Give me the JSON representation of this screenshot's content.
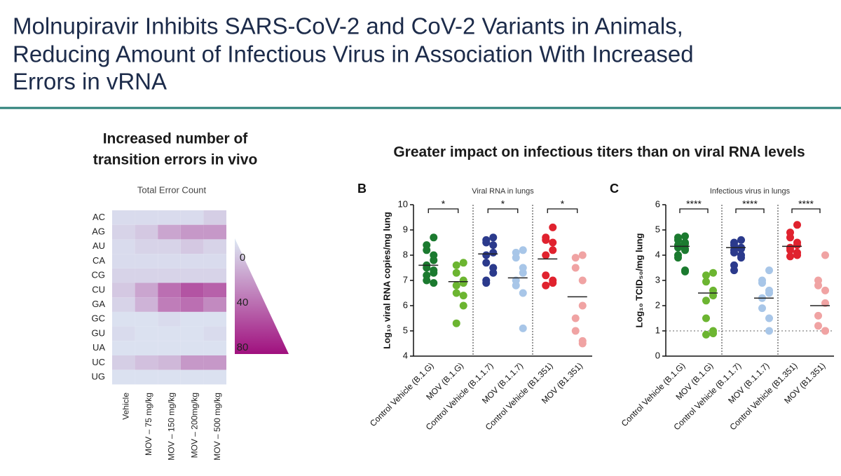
{
  "title": [
    "Molnupiravir Inhibits SARS-CoV-2 and CoV-2 Variants in Animals,",
    "Reducing Amount of Infectious Virus in Association With Increased",
    "Errors in vRNA"
  ],
  "subtitle": "Greater impact on infectious titers than on viral RNA levels",
  "chart_data": [
    {
      "type": "heatmap",
      "title": [
        "Increased number of",
        "transition errors in vivo"
      ],
      "subtitle": "Total Error Count",
      "rows": [
        "AC",
        "AG",
        "AU",
        "CA",
        "CG",
        "CU",
        "GA",
        "GC",
        "GU",
        "UA",
        "UC",
        "UG"
      ],
      "columns": [
        "Vehicle",
        "MOV – 75 mg/kg",
        "MOV – 150 mg/kg",
        "MOV – 200mg/kg",
        "MOV – 500 mg/kg"
      ],
      "values": [
        [
          5,
          5,
          5,
          5,
          10
        ],
        [
          8,
          12,
          25,
          30,
          30
        ],
        [
          5,
          8,
          8,
          12,
          8
        ],
        [
          5,
          5,
          5,
          5,
          5
        ],
        [
          8,
          8,
          8,
          8,
          8
        ],
        [
          12,
          25,
          45,
          55,
          50
        ],
        [
          8,
          20,
          40,
          45,
          35
        ],
        [
          3,
          3,
          5,
          3,
          3
        ],
        [
          5,
          3,
          3,
          3,
          5
        ],
        [
          3,
          3,
          3,
          3,
          3
        ],
        [
          10,
          15,
          18,
          30,
          30
        ],
        [
          3,
          3,
          3,
          3,
          3
        ]
      ],
      "colorscale": [
        "#dde9f4",
        "#a0107e"
      ],
      "zlim": [
        0,
        80
      ],
      "zticks": [
        0,
        40,
        80
      ]
    },
    {
      "type": "dot",
      "panel": "B",
      "title": "Viral RNA in lungs",
      "ylabel": "Log₁₀ viral RNA copies/mg lung",
      "ylim": [
        4,
        10
      ],
      "yticks": [
        4,
        5,
        6,
        7,
        8,
        9,
        10
      ],
      "significance": [
        "*",
        "*",
        "*"
      ],
      "series": [
        {
          "name": "Control Vehicle (B.1.G)",
          "color": "#1b7a2f",
          "mean": 7.6,
          "values": [
            8.7,
            8.4,
            8.2,
            8.0,
            7.8,
            7.6,
            7.5,
            7.4,
            7.3,
            7.2,
            7.0,
            6.9
          ]
        },
        {
          "name": "MOV (B.1.G)",
          "color": "#6cb531",
          "mean": 6.95,
          "values": [
            7.7,
            7.6,
            7.3,
            7.0,
            6.9,
            6.8,
            6.5,
            6.4,
            6.0,
            5.3
          ]
        },
        {
          "name": "Control Vehicle (B.1.1.7)",
          "color": "#2b3a8c",
          "mean": 8.05,
          "values": [
            8.7,
            8.6,
            8.5,
            8.4,
            8.1,
            8.0,
            7.7,
            7.5,
            7.3,
            7.0,
            6.9
          ]
        },
        {
          "name": "MOV (B.1.1.7)",
          "color": "#a8c6e8",
          "mean": 7.1,
          "values": [
            8.2,
            8.1,
            7.9,
            7.5,
            7.3,
            7.0,
            6.8,
            6.5,
            5.1
          ]
        },
        {
          "name": "Control Vehicle (B1.351)",
          "color": "#e0222e",
          "mean": 7.85,
          "values": [
            9.1,
            8.7,
            8.6,
            8.5,
            8.2,
            8.0,
            7.2,
            7.0,
            6.9,
            6.8
          ]
        },
        {
          "name": "MOV (B1.351)",
          "color": "#f0a3a3",
          "mean": 6.35,
          "values": [
            8.0,
            7.9,
            7.5,
            7.0,
            6.0,
            5.5,
            5.0,
            4.6,
            4.5
          ]
        }
      ]
    },
    {
      "type": "dot",
      "panel": "C",
      "title": "Infectious virus in lungs",
      "ylabel": "Log₁₀ TCID₅₀/mg lung",
      "ylim": [
        0,
        6
      ],
      "yticks": [
        0,
        1,
        2,
        3,
        4,
        5,
        6
      ],
      "hline": 1,
      "significance": [
        "****",
        "****",
        "****"
      ],
      "series": [
        {
          "name": "Control Vehicle (B.1.G)",
          "color": "#1b7a2f",
          "mean": 4.35,
          "values": [
            4.75,
            4.7,
            4.6,
            4.5,
            4.45,
            4.4,
            4.3,
            4.25,
            4.2,
            4.0,
            3.9,
            3.4,
            3.35
          ]
        },
        {
          "name": "MOV (B.1.G)",
          "color": "#6cb531",
          "mean": 2.5,
          "values": [
            3.3,
            3.2,
            2.95,
            2.6,
            2.4,
            2.2,
            1.5,
            1.0,
            0.9,
            0.85
          ]
        },
        {
          "name": "Control Vehicle (B.1.1.7)",
          "color": "#2b3a8c",
          "mean": 4.3,
          "values": [
            4.6,
            4.5,
            4.4,
            4.3,
            4.25,
            4.2,
            4.1,
            4.0,
            3.9,
            3.6,
            3.4
          ]
        },
        {
          "name": "MOV (B.1.1.7)",
          "color": "#a8c6e8",
          "mean": 2.3,
          "values": [
            3.4,
            3.0,
            2.9,
            2.6,
            2.5,
            2.3,
            1.9,
            1.5,
            1.0
          ]
        },
        {
          "name": "Control Vehicle (B1.351)",
          "color": "#e0222e",
          "mean": 4.35,
          "values": [
            5.2,
            4.9,
            4.7,
            4.5,
            4.4,
            4.3,
            4.2,
            4.1,
            4.0,
            3.95
          ]
        },
        {
          "name": "MOV (B1.351)",
          "color": "#f0a3a3",
          "mean": 2.0,
          "values": [
            4.0,
            3.0,
            2.8,
            2.6,
            2.1,
            1.6,
            1.2,
            1.0,
            1.0
          ]
        }
      ]
    }
  ]
}
